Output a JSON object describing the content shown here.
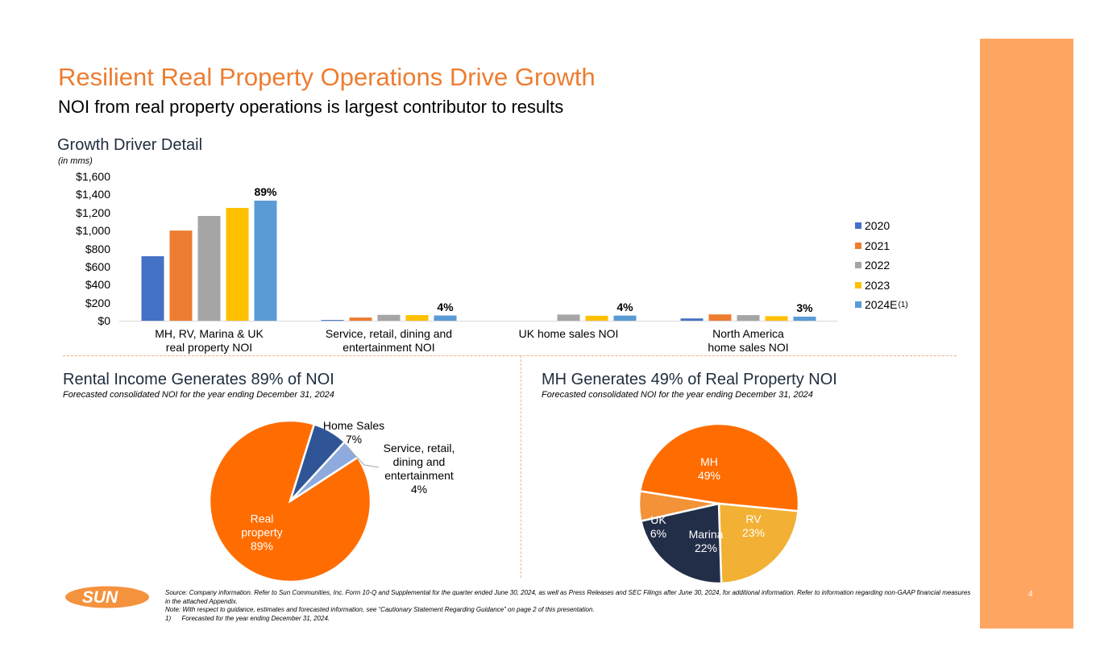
{
  "header": {
    "title": "Resilient Real Property Operations Drive Growth",
    "subtitle": "NOI from real property operations is largest contributor to results"
  },
  "growth_section": {
    "title": "Growth Driver Detail",
    "units": "(in mms)"
  },
  "colors": {
    "accent": "#ED7D31",
    "panel": "#FFA562",
    "series": [
      "#4472C4",
      "#ED7D31",
      "#A5A5A5",
      "#FFC000",
      "#5B9BD5"
    ]
  },
  "chart_data": [
    {
      "type": "bar",
      "title": "Growth Driver Detail",
      "ylabel": "(in mms)",
      "xlabel": "",
      "ylim": [
        0,
        1600
      ],
      "yticks": [
        0,
        200,
        400,
        600,
        800,
        1000,
        1200,
        1400,
        1600
      ],
      "ytick_labels": [
        "$0",
        "$200",
        "$400",
        "$600",
        "$800",
        "$1,000",
        "$1,200",
        "$1,400",
        "$1,600"
      ],
      "categories": [
        [
          "MH, RV, Marina & UK",
          "real property NOI"
        ],
        [
          "Service, retail, dining and",
          "entertainment NOI"
        ],
        [
          "UK home sales NOI"
        ],
        [
          "North America",
          "home sales NOI"
        ]
      ],
      "series": [
        {
          "name": "2020",
          "values": [
            715,
            8,
            0,
            25
          ]
        },
        {
          "name": "2021",
          "values": [
            1000,
            35,
            0,
            70
          ]
        },
        {
          "name": "2022",
          "values": [
            1162,
            65,
            68,
            62
          ]
        },
        {
          "name": "2023",
          "values": [
            1251,
            62,
            55,
            50
          ]
        },
        {
          "name": "2024E",
          "footnote": "(1)",
          "values": [
            1332,
            58,
            57,
            45
          ]
        }
      ],
      "data_labels": [
        "89%",
        "4%",
        "4%",
        "3%"
      ],
      "legend": "right",
      "grid": false
    },
    {
      "type": "pie",
      "title": "Rental Income Generates 89% of NOI",
      "subtitle": "Forecasted consolidated NOI for the year ending December 31, 2024",
      "slices": [
        {
          "label": "Real property",
          "value": 89,
          "display": [
            "Real",
            "property",
            "89%"
          ],
          "color": "#FF6D00"
        },
        {
          "label": "Home Sales",
          "value": 7,
          "display": [
            "Home Sales",
            "7%"
          ],
          "color": "#2F5597"
        },
        {
          "label": "Service, retail, dining and entertainment",
          "value": 4,
          "display": [
            "Service, retail,",
            "dining and",
            "entertainment",
            "4%"
          ],
          "color": "#8FAADC"
        }
      ]
    },
    {
      "type": "pie",
      "title": "MH Generates 49% of Real Property NOI",
      "subtitle": "Forecasted consolidated NOI for the year ending December 31, 2024",
      "slices": [
        {
          "label": "MH",
          "value": 49,
          "display": [
            "MH",
            "49%"
          ],
          "color": "#FF6D00"
        },
        {
          "label": "RV",
          "value": 23,
          "display": [
            "RV",
            "23%"
          ],
          "color": "#F2B134"
        },
        {
          "label": "Marina",
          "value": 22,
          "display": [
            "Marina",
            "22%"
          ],
          "color": "#222E48"
        },
        {
          "label": "UK",
          "value": 6,
          "display": [
            "UK",
            "6%"
          ],
          "color": "#F39237"
        }
      ]
    }
  ],
  "footer": {
    "logo_text": "SUN",
    "source": "Source: Company information. Refer to Sun Communities, Inc. Form 10-Q and Supplemental for the quarter ended June 30, 2024, as well as Press Releases and SEC Filings after June 30, 2024, for additional information. Refer to information regarding non-GAAP financial measures in the attached Appendix.",
    "note": "Note:  With respect to guidance, estimates and forecasted information, see “Cautionary Statement Regarding Guidance” on page 2 of this presentation.",
    "footnote_1": "1)      Forecasted for the year ending December 31, 2024.",
    "page_number": "4"
  }
}
